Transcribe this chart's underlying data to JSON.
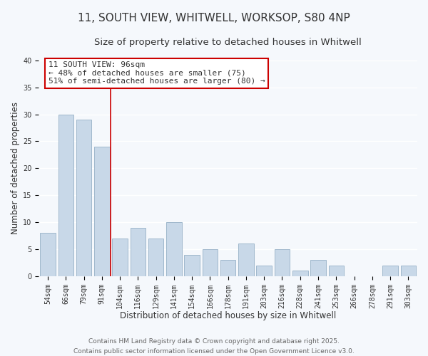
{
  "title1": "11, SOUTH VIEW, WHITWELL, WORKSOP, S80 4NP",
  "title2": "Size of property relative to detached houses in Whitwell",
  "xlabel": "Distribution of detached houses by size in Whitwell",
  "ylabel": "Number of detached properties",
  "bar_labels": [
    "54sqm",
    "66sqm",
    "79sqm",
    "91sqm",
    "104sqm",
    "116sqm",
    "129sqm",
    "141sqm",
    "154sqm",
    "166sqm",
    "178sqm",
    "191sqm",
    "203sqm",
    "216sqm",
    "228sqm",
    "241sqm",
    "253sqm",
    "266sqm",
    "278sqm",
    "291sqm",
    "303sqm"
  ],
  "bar_values": [
    8,
    30,
    29,
    24,
    7,
    9,
    7,
    10,
    4,
    5,
    3,
    6,
    2,
    5,
    1,
    3,
    2,
    0,
    0,
    2,
    2
  ],
  "bar_color": "#c8d8e8",
  "bar_edge_color": "#a0b8cc",
  "vline_x": 3.5,
  "vline_color": "#cc0000",
  "ylim": [
    0,
    40
  ],
  "yticks": [
    0,
    5,
    10,
    15,
    20,
    25,
    30,
    35,
    40
  ],
  "annotation_title": "11 SOUTH VIEW: 96sqm",
  "annotation_line1": "← 48% of detached houses are smaller (75)",
  "annotation_line2": "51% of semi-detached houses are larger (80) →",
  "footer1": "Contains HM Land Registry data © Crown copyright and database right 2025.",
  "footer2": "Contains public sector information licensed under the Open Government Licence v3.0.",
  "bg_color": "#f5f8fc",
  "grid_color": "#ffffff",
  "title_fontsize": 11,
  "subtitle_fontsize": 9.5,
  "axis_label_fontsize": 8.5,
  "tick_fontsize": 7,
  "annotation_fontsize": 8,
  "footer_fontsize": 6.5
}
